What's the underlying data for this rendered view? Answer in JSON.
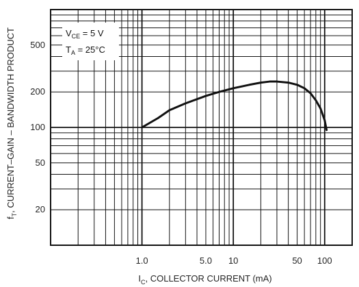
{
  "chart_data": {
    "type": "line",
    "x_scale": "log",
    "y_scale": "log",
    "xlim": [
      0.1,
      200
    ],
    "ylim": [
      10,
      1000
    ],
    "grid": true,
    "xlabel": {
      "main": "I",
      "sub": "C",
      "rest": ", COLLECTOR CURRENT (mA)"
    },
    "ylabel": {
      "main": "f",
      "sub": "T",
      "rest": ", CURRENT–GAIN – BANDWIDTH PRODUCT"
    },
    "x_ticks": [
      {
        "value": 1,
        "label": "1.0"
      },
      {
        "value": 5,
        "label": "5.0"
      },
      {
        "value": 10,
        "label": "10"
      },
      {
        "value": 50,
        "label": "50"
      },
      {
        "value": 100,
        "label": "100"
      }
    ],
    "y_ticks": [
      {
        "value": 500,
        "label": "500"
      },
      {
        "value": 200,
        "label": "200"
      },
      {
        "value": 100,
        "label": "100"
      },
      {
        "value": 50,
        "label": "50"
      },
      {
        "value": 20,
        "label": "20"
      }
    ],
    "legend": {
      "placement": "top-left",
      "lines": [
        {
          "main": "V",
          "sub": "CE",
          "rest": " = 5 V"
        },
        {
          "main": "T",
          "sub": "A",
          "rest": " = 25°C"
        }
      ]
    },
    "series": [
      {
        "x": [
          1.0,
          1.5,
          2,
          3,
          5,
          7,
          10,
          15,
          20,
          25,
          30,
          40,
          50,
          60,
          70,
          80,
          90,
          100,
          105
        ],
        "y": [
          100,
          120,
          140,
          160,
          185,
          200,
          215,
          230,
          240,
          245,
          245,
          240,
          230,
          215,
          195,
          170,
          145,
          115,
          95
        ]
      }
    ],
    "colors": {
      "curve": "#111111",
      "grid": "#111111",
      "background": "#ffffff"
    }
  }
}
